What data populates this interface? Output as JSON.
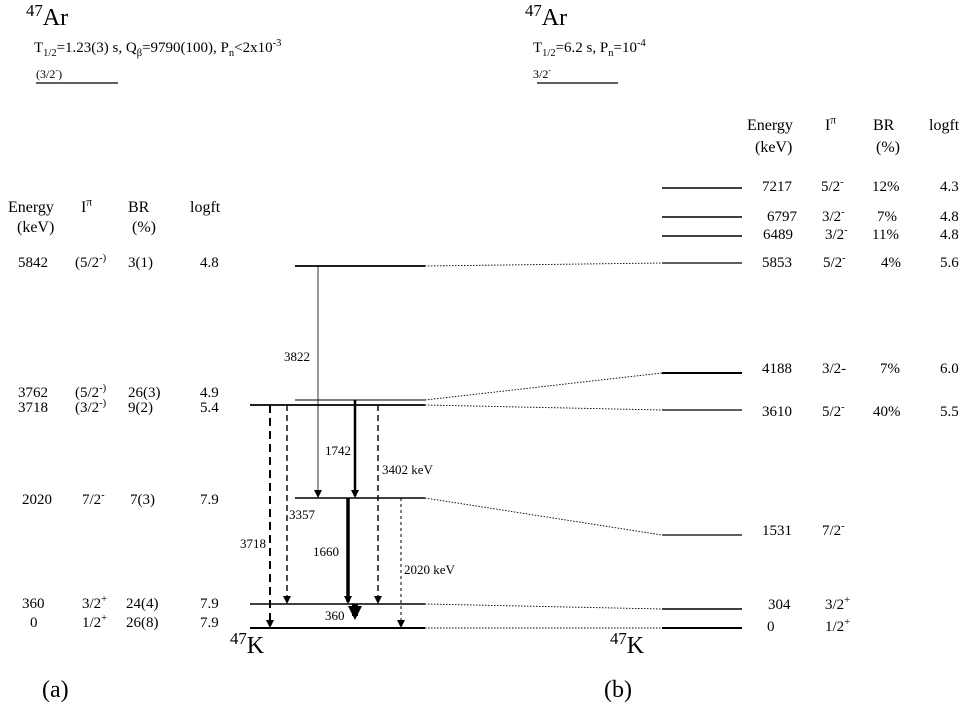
{
  "left": {
    "parent": {
      "mass": "47",
      "symbol": "Ar"
    },
    "props": {
      "t_label": "T",
      "t_sub": "1/2",
      "t_val": "=1.23(3) s, Q",
      "q_sub": "β",
      "q_val": "=9790(100), P",
      "p_sub": "n",
      "p_val": "<2x10",
      "p_exp": "-3"
    },
    "gs_spin": "(3/2",
    "gs_spin_sup": "-",
    "gs_spin_close": ")",
    "headers": {
      "energy": "Energy",
      "kev": "(keV)",
      "ipi": "I",
      "ipi_sup": "π",
      "br": "BR",
      "br_unit": "(%)",
      "logft": "logft"
    },
    "levels": [
      {
        "energy": "5842",
        "spin": "(5/2",
        "spin_sup": "-)",
        "br": "3(1)",
        "logft": "4.8"
      },
      {
        "energy": "3762",
        "spin": "(5/2",
        "spin_sup": "-)",
        "br": "26(3)",
        "logft": "4.9"
      },
      {
        "energy": "3718",
        "spin": "(3/2",
        "spin_sup": "-)",
        "br": "9(2)",
        "logft": "5.4"
      },
      {
        "energy": "2020",
        "spin": "7/2",
        "spin_sup": "-",
        "br": "7(3)",
        "logft": "7.9"
      },
      {
        "energy": "360",
        "spin": "3/2",
        "spin_sup": "+",
        "br": "24(4)",
        "logft": "7.9"
      },
      {
        "energy": "0",
        "spin": "1/2",
        "spin_sup": "+",
        "br": "26(8)",
        "logft": "7.9"
      }
    ],
    "transitions": [
      "3822",
      "1742",
      "3402 keV",
      "3357",
      "3718",
      "1660",
      "2020 keV",
      "360"
    ],
    "daughter": {
      "mass": "47",
      "symbol": "K"
    },
    "panel_label": "(a)"
  },
  "right": {
    "parent": {
      "mass": "47",
      "symbol": "Ar"
    },
    "props": {
      "t_label": "T",
      "t_sub": "1/2",
      "t_val": "=6.2 s,  P",
      "p_sub": "n",
      "p_val": "=10",
      "p_exp": "-4"
    },
    "gs_spin": "3/2",
    "gs_spin_sup": "-",
    "headers": {
      "energy": "Energy",
      "kev": "(keV)",
      "ipi": "I",
      "ipi_sup": "π",
      "br": "BR",
      "br_unit": "(%)",
      "logft": "logft"
    },
    "levels": [
      {
        "energy": "7217",
        "spin": "5/2",
        "spin_sup": "-",
        "br": "12%",
        "logft": "4.3"
      },
      {
        "energy": "6797",
        "spin": "3/2",
        "spin_sup": "-",
        "br": "7%",
        "logft": "4.8"
      },
      {
        "energy": "6489",
        "spin": "3/2",
        "spin_sup": "-",
        "br": "11%",
        "logft": "4.8"
      },
      {
        "energy": "5853",
        "spin": "5/2",
        "spin_sup": "-",
        "br": "4%",
        "logft": "5.6"
      },
      {
        "energy": "4188",
        "spin": "3/2-",
        "spin_sup": "",
        "br": "7%",
        "logft": "6.0"
      },
      {
        "energy": "3610",
        "spin": "5/2",
        "spin_sup": "-",
        "br": "40%",
        "logft": "5.5"
      },
      {
        "energy": "1531",
        "spin": "7/2",
        "spin_sup": "-",
        "br": "",
        "logft": ""
      },
      {
        "energy": "304",
        "spin": "3/2",
        "spin_sup": "+",
        "br": "",
        "logft": ""
      },
      {
        "energy": "0",
        "spin": "1/2",
        "spin_sup": "+",
        "br": "",
        "logft": ""
      }
    ],
    "daughter": {
      "mass": "47",
      "symbol": "K"
    },
    "panel_label": "(b)"
  }
}
